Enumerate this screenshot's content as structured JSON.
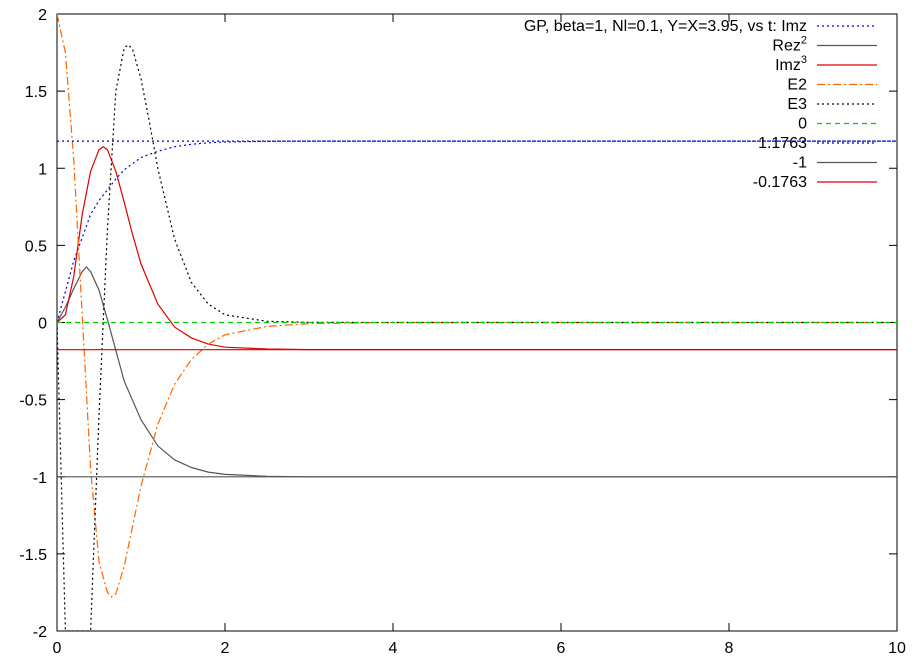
{
  "chart_data": {
    "type": "line",
    "xlim": [
      0,
      10
    ],
    "ylim": [
      -2,
      2
    ],
    "x_ticks": [
      "0",
      "2",
      "4",
      "6",
      "8",
      "10"
    ],
    "y_ticks": [
      "2",
      "1.5",
      "1",
      "0.5",
      "0",
      "-0.5",
      "-1",
      "-1.5",
      "-2"
    ],
    "grid": false,
    "legend_position": "top-right",
    "series": [
      {
        "name": "GP, beta=1, Nl=0.1, Y=X=3.95, vs t: Imz",
        "color": "#0000cc",
        "dash": "dotted",
        "x": [
          0,
          0.05,
          0.1,
          0.2,
          0.3,
          0.4,
          0.5,
          0.6,
          0.7,
          0.8,
          0.9,
          1.0,
          1.2,
          1.4,
          1.6,
          1.8,
          2.0,
          2.5,
          3.0,
          4.0,
          6.0,
          8.0,
          10.0
        ],
        "y": [
          0,
          0.1,
          0.2,
          0.4,
          0.55,
          0.7,
          0.79,
          0.86,
          0.93,
          0.99,
          1.03,
          1.07,
          1.11,
          1.14,
          1.155,
          1.165,
          1.17,
          1.175,
          1.176,
          1.176,
          1.176,
          1.176,
          1.176
        ]
      },
      {
        "name": "Rez",
        "name_sup": "2",
        "color": "#555555",
        "dash": "solid",
        "x": [
          0,
          0.1,
          0.2,
          0.3,
          0.35,
          0.4,
          0.5,
          0.6,
          0.7,
          0.8,
          1.0,
          1.2,
          1.4,
          1.6,
          1.8,
          2.0,
          2.5,
          3.0,
          4.0,
          6.0,
          8.0,
          10.0
        ],
        "y": [
          0,
          0.1,
          0.22,
          0.33,
          0.36,
          0.33,
          0.21,
          0.02,
          -0.18,
          -0.38,
          -0.63,
          -0.8,
          -0.89,
          -0.94,
          -0.97,
          -0.985,
          -0.997,
          -1.0,
          -1.0,
          -1.0,
          -1.0,
          -1.0
        ]
      },
      {
        "name": "Imz",
        "name_sup": "3",
        "color": "#dd0000",
        "dash": "solid",
        "x": [
          0,
          0.1,
          0.2,
          0.3,
          0.4,
          0.5,
          0.55,
          0.6,
          0.7,
          0.8,
          0.9,
          1.0,
          1.2,
          1.4,
          1.6,
          1.8,
          2.0,
          2.5,
          3.0,
          4.0,
          6.0,
          8.0,
          10.0
        ],
        "y": [
          0,
          0.05,
          0.3,
          0.7,
          0.98,
          1.12,
          1.14,
          1.12,
          0.98,
          0.78,
          0.57,
          0.38,
          0.12,
          -0.03,
          -0.1,
          -0.14,
          -0.16,
          -0.172,
          -0.176,
          -0.176,
          -0.176,
          -0.176,
          -0.176
        ]
      },
      {
        "name": "E2",
        "color": "#ff6600",
        "dash": "dashdot",
        "x": [
          0,
          0.1,
          0.2,
          0.3,
          0.4,
          0.5,
          0.6,
          0.65,
          0.7,
          0.8,
          0.9,
          1.0,
          1.2,
          1.4,
          1.6,
          1.8,
          2.0,
          2.5,
          3.0,
          4.0,
          6.0,
          8.0,
          10.0
        ],
        "y": [
          2.0,
          1.75,
          1.05,
          0.05,
          -0.95,
          -1.55,
          -1.75,
          -1.78,
          -1.76,
          -1.58,
          -1.32,
          -1.06,
          -0.66,
          -0.4,
          -0.24,
          -0.14,
          -0.08,
          -0.025,
          -0.007,
          0,
          0,
          0,
          0
        ]
      },
      {
        "name": "E3",
        "color": "#000000",
        "dash": "dotted",
        "x": [
          0,
          0.05,
          0.1,
          0.2,
          0.3,
          0.4,
          0.5,
          0.6,
          0.7,
          0.8,
          0.85,
          0.9,
          1.0,
          1.1,
          1.2,
          1.4,
          1.6,
          1.8,
          2.0,
          2.5,
          3.0,
          4.0,
          6.0,
          8.0,
          10.0
        ],
        "y": [
          0,
          -1.0,
          -2.0,
          -2.0,
          -2.0,
          -2.0,
          -0.6,
          0.6,
          1.5,
          1.78,
          1.8,
          1.77,
          1.58,
          1.3,
          1.0,
          0.54,
          0.26,
          0.12,
          0.05,
          0.008,
          0.001,
          0,
          0,
          0,
          0
        ]
      },
      {
        "name": "0",
        "color": "#00cc00",
        "dash": "dashed",
        "x": [
          0,
          10
        ],
        "y": [
          0,
          0
        ]
      },
      {
        "name": "1.1763",
        "color": "#0000cc",
        "dash": "dotted",
        "x": [
          0,
          10
        ],
        "y": [
          1.1763,
          1.1763
        ]
      },
      {
        "name": "-1",
        "color": "#555555",
        "dash": "solid",
        "x": [
          0,
          10
        ],
        "y": [
          -1,
          -1
        ]
      },
      {
        "name": "-0.1763",
        "color": "#dd0000",
        "dash": "solid",
        "x": [
          0,
          10
        ],
        "y": [
          -0.1763,
          -0.1763
        ]
      }
    ]
  }
}
